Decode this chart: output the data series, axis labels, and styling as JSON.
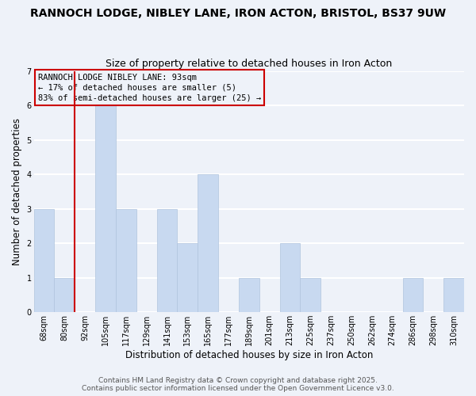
{
  "title": "RANNOCH LODGE, NIBLEY LANE, IRON ACTON, BRISTOL, BS37 9UW",
  "subtitle": "Size of property relative to detached houses in Iron Acton",
  "xlabel": "Distribution of detached houses by size in Iron Acton",
  "ylabel": "Number of detached properties",
  "bar_labels": [
    "68sqm",
    "80sqm",
    "92sqm",
    "105sqm",
    "117sqm",
    "129sqm",
    "141sqm",
    "153sqm",
    "165sqm",
    "177sqm",
    "189sqm",
    "201sqm",
    "213sqm",
    "225sqm",
    "237sqm",
    "250sqm",
    "262sqm",
    "274sqm",
    "286sqm",
    "298sqm",
    "310sqm"
  ],
  "bar_values": [
    3,
    1,
    0,
    6,
    3,
    0,
    3,
    2,
    4,
    0,
    1,
    0,
    2,
    1,
    0,
    0,
    0,
    0,
    1,
    0,
    1
  ],
  "bar_color": "#c8d9f0",
  "bar_edge_color": "#b0c4de",
  "background_color": "#eef2f9",
  "grid_color": "#ffffff",
  "vline_color": "#cc0000",
  "vline_index": 2,
  "annotation_text": "RANNOCH LODGE NIBLEY LANE: 93sqm\n← 17% of detached houses are smaller (5)\n83% of semi-detached houses are larger (25) →",
  "annotation_box_color": "#cc0000",
  "footer_line1": "Contains HM Land Registry data © Crown copyright and database right 2025.",
  "footer_line2": "Contains public sector information licensed under the Open Government Licence v3.0.",
  "ylim": [
    0,
    7
  ],
  "title_fontsize": 10,
  "subtitle_fontsize": 9,
  "xlabel_fontsize": 8.5,
  "ylabel_fontsize": 8.5,
  "tick_fontsize": 7,
  "annotation_fontsize": 7.5,
  "footer_fontsize": 6.5
}
